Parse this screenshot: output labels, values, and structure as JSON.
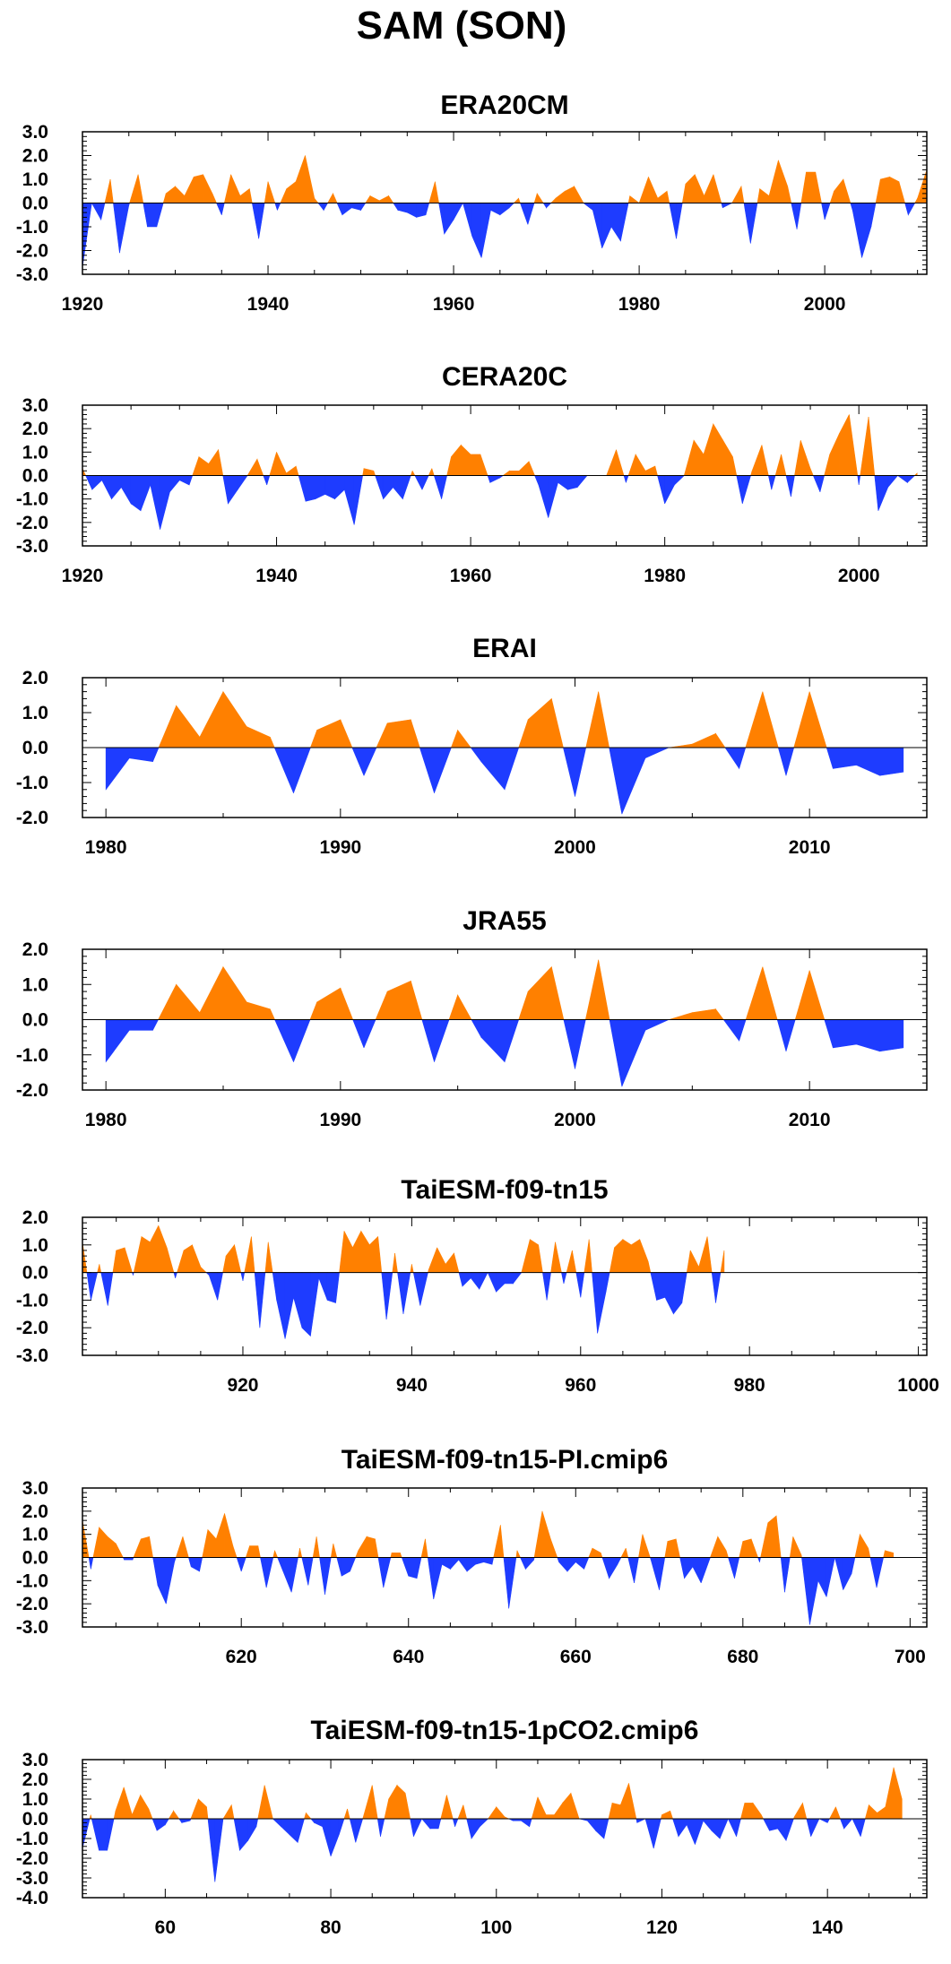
{
  "title": "SAM (SON)",
  "colors": {
    "positive": "#ff8000",
    "negative": "#1e3cff",
    "axis": "#000000",
    "zero_line": "#000000"
  },
  "chart_data": [
    {
      "type": "area",
      "title": "ERA20CM",
      "xlabel": "",
      "ylabel": "",
      "xlim": [
        1920,
        2011
      ],
      "ylim": [
        -3,
        3
      ],
      "yticks": [
        3,
        2,
        1,
        0,
        -1,
        -2,
        -3
      ],
      "ytick_labels": [
        "3.0",
        "2.0",
        "1.0",
        "0.0",
        "-1.0",
        "-2.0",
        "-3.0"
      ],
      "xticks": [
        1920,
        1940,
        1960,
        1980,
        2000
      ],
      "xtick_labels": [
        "1920",
        "1940",
        "1960",
        "1980",
        "2000"
      ],
      "grid": false,
      "x_start": 1920,
      "values": [
        -2.7,
        0.0,
        -0.7,
        1.0,
        -2.1,
        -0.1,
        1.2,
        -1.0,
        -1.0,
        0.4,
        0.7,
        0.3,
        1.1,
        1.2,
        0.4,
        -0.5,
        1.2,
        0.3,
        0.6,
        -1.5,
        0.9,
        -0.3,
        0.6,
        0.9,
        2.0,
        0.2,
        -0.3,
        0.4,
        -0.5,
        -0.2,
        -0.3,
        0.3,
        0.1,
        0.3,
        -0.3,
        -0.4,
        -0.6,
        -0.5,
        0.9,
        -1.3,
        -0.7,
        0.0,
        -1.4,
        -2.3,
        -0.3,
        -0.5,
        -0.2,
        0.2,
        -0.9,
        0.4,
        -0.2,
        0.2,
        0.5,
        0.7,
        0.0,
        -0.3,
        -1.9,
        -1.0,
        -1.6,
        0.3,
        0.0,
        1.1,
        0.2,
        0.5,
        -1.5,
        0.8,
        1.2,
        0.3,
        1.2,
        -0.2,
        0.0,
        0.7,
        -1.7,
        0.6,
        0.3,
        1.8,
        0.7,
        -1.1,
        1.3,
        1.3,
        -0.7,
        0.5,
        1.0,
        -0.3,
        -2.3,
        -1.0,
        1.0,
        1.1,
        0.9,
        -0.5,
        0.2,
        1.4
      ]
    },
    {
      "type": "area",
      "title": "CERA20C",
      "xlabel": "",
      "ylabel": "",
      "xlim": [
        1920,
        2007
      ],
      "ylim": [
        -3,
        3
      ],
      "yticks": [
        3,
        2,
        1,
        0,
        -1,
        -2,
        -3
      ],
      "ytick_labels": [
        "3.0",
        "2.0",
        "1.0",
        "0.0",
        "-1.0",
        "-2.0",
        "-3.0"
      ],
      "xticks": [
        1920,
        1940,
        1960,
        1980,
        2000
      ],
      "xtick_labels": [
        "1920",
        "1940",
        "1960",
        "1980",
        "2000"
      ],
      "grid": false,
      "x_start": 1920,
      "values": [
        0.3,
        -0.6,
        -0.2,
        -1.0,
        -0.5,
        -1.2,
        -1.5,
        -0.4,
        -2.3,
        -0.7,
        -0.2,
        -0.4,
        0.8,
        0.5,
        1.1,
        -1.2,
        -0.6,
        0.0,
        0.7,
        -0.4,
        1.0,
        0.1,
        0.4,
        -1.1,
        -1.0,
        -0.8,
        -1.0,
        -0.6,
        -2.1,
        0.3,
        0.2,
        -1.0,
        -0.5,
        -1.0,
        0.2,
        -0.6,
        0.3,
        -1.0,
        0.8,
        1.3,
        0.9,
        0.9,
        -0.3,
        -0.1,
        0.2,
        0.2,
        0.6,
        -0.4,
        -1.8,
        -0.3,
        -0.6,
        -0.5,
        0.0,
        0.0,
        0.0,
        1.1,
        -0.3,
        0.9,
        0.2,
        0.4,
        -1.2,
        -0.4,
        0.0,
        1.5,
        0.9,
        2.2,
        1.5,
        0.8,
        -1.2,
        0.2,
        1.3,
        -0.6,
        0.9,
        -0.9,
        1.5,
        0.3,
        -0.7,
        0.9,
        1.8,
        2.6,
        -0.4,
        2.5,
        -1.5,
        -0.5,
        0.0,
        -0.3,
        0.1
      ]
    },
    {
      "type": "area",
      "title": "ERAI",
      "xlabel": "",
      "ylabel": "",
      "xlim": [
        1979,
        2015
      ],
      "ylim": [
        -2,
        2
      ],
      "yticks": [
        2,
        1,
        0,
        -1,
        -2
      ],
      "ytick_labels": [
        "2.0",
        "1.0",
        "0.0",
        "-1.0",
        "-2.0"
      ],
      "xticks": [
        1980,
        1990,
        2000,
        2010
      ],
      "xtick_labels": [
        "1980",
        "1990",
        "2000",
        "2010"
      ],
      "grid": false,
      "x_start": 1980,
      "values": [
        -1.2,
        -0.3,
        -0.4,
        1.2,
        0.3,
        1.6,
        0.6,
        0.3,
        -1.3,
        0.5,
        0.8,
        -0.8,
        0.7,
        0.8,
        -1.3,
        0.5,
        -0.4,
        -1.2,
        0.8,
        1.4,
        -1.4,
        1.6,
        -1.9,
        -0.3,
        0.0,
        0.1,
        0.4,
        -0.6,
        1.6,
        -0.8,
        1.6,
        -0.6,
        -0.5,
        -0.8,
        -0.7
      ]
    },
    {
      "type": "area",
      "title": "JRA55",
      "xlabel": "",
      "ylabel": "",
      "xlim": [
        1979,
        2015
      ],
      "ylim": [
        -2,
        2
      ],
      "yticks": [
        2,
        1,
        0,
        -1,
        -2
      ],
      "ytick_labels": [
        "2.0",
        "1.0",
        "0.0",
        "-1.0",
        "-2.0"
      ],
      "xticks": [
        1980,
        1990,
        2000,
        2010
      ],
      "xtick_labels": [
        "1980",
        "1990",
        "2000",
        "2010"
      ],
      "grid": false,
      "x_start": 1980,
      "values": [
        -1.2,
        -0.3,
        -0.3,
        1.0,
        0.2,
        1.5,
        0.5,
        0.3,
        -1.2,
        0.5,
        0.9,
        -0.8,
        0.8,
        1.1,
        -1.2,
        0.7,
        -0.5,
        -1.2,
        0.8,
        1.5,
        -1.4,
        1.7,
        -1.9,
        -0.3,
        0.0,
        0.2,
        0.3,
        -0.6,
        1.5,
        -0.9,
        1.4,
        -0.8,
        -0.7,
        -0.9,
        -0.8
      ]
    },
    {
      "type": "area",
      "title": "TaiESM-f09-tn15",
      "xlabel": "",
      "ylabel": "",
      "xlim": [
        901,
        1001
      ],
      "ylim": [
        -3,
        2
      ],
      "yticks": [
        2,
        1,
        0,
        -1,
        -2,
        -3
      ],
      "ytick_labels": [
        "2.0",
        "1.0",
        "0.0",
        "-1.0",
        "-2.0",
        "-3.0"
      ],
      "xticks": [
        920,
        940,
        960,
        980,
        1000
      ],
      "xtick_labels": [
        "920",
        "940",
        "960",
        "980",
        "1000"
      ],
      "grid": false,
      "x_start": 901,
      "values": [
        1.1,
        -1.0,
        0.3,
        -1.2,
        0.8,
        0.9,
        -0.1,
        1.3,
        1.1,
        1.7,
        0.9,
        -0.2,
        0.8,
        1.0,
        0.2,
        -0.1,
        -1.0,
        0.6,
        1.0,
        -0.3,
        1.3,
        -2.0,
        1.1,
        -1.0,
        -2.4,
        -0.9,
        -2.0,
        -2.3,
        -0.2,
        -1.0,
        -1.1,
        1.5,
        0.9,
        1.5,
        1.0,
        1.3,
        -1.7,
        0.7,
        -1.5,
        0.3,
        -1.2,
        0.1,
        0.9,
        0.3,
        0.7,
        -0.5,
        -0.2,
        -0.6,
        0.0,
        -0.7,
        -0.4,
        -0.4,
        0.0,
        1.2,
        1.0,
        -1.0,
        1.1,
        -0.4,
        0.8,
        -0.9,
        1.2,
        -2.2,
        -0.7,
        0.9,
        1.2,
        1.0,
        1.2,
        0.4,
        -1.0,
        -0.9,
        -1.5,
        -1.1,
        0.8,
        0.2,
        1.3,
        -1.1,
        0.8
      ]
    },
    {
      "type": "area",
      "title": "TaiESM-f09-tn15-PI.cmip6",
      "xlabel": "",
      "ylabel": "",
      "xlim": [
        601,
        702
      ],
      "ylim": [
        -3,
        3
      ],
      "yticks": [
        3,
        2,
        1,
        0,
        -1,
        -2,
        -3
      ],
      "ytick_labels": [
        "3.0",
        "2.0",
        "1.0",
        "0.0",
        "-1.0",
        "-2.0",
        "-3.0"
      ],
      "xticks": [
        620,
        640,
        660,
        680,
        700
      ],
      "xtick_labels": [
        "620",
        "640",
        "660",
        "680",
        "700"
      ],
      "grid": false,
      "x_start": 601,
      "values": [
        1.6,
        -0.5,
        1.3,
        0.9,
        0.6,
        -0.1,
        -0.1,
        0.8,
        0.9,
        -1.2,
        -2.0,
        -0.2,
        0.9,
        -0.4,
        -0.6,
        1.2,
        0.8,
        1.9,
        0.5,
        -0.6,
        0.5,
        0.5,
        -1.3,
        0.3,
        -0.6,
        -1.5,
        0.4,
        -1.2,
        0.9,
        -1.6,
        0.6,
        -0.8,
        -0.6,
        0.3,
        0.9,
        0.8,
        -1.3,
        0.2,
        0.2,
        -0.8,
        -0.9,
        0.8,
        -1.8,
        -0.3,
        -0.5,
        -0.1,
        -0.6,
        -0.3,
        -0.2,
        -0.3,
        1.4,
        -2.2,
        0.3,
        -0.5,
        -0.1,
        2.0,
        0.8,
        -0.2,
        -0.6,
        -0.2,
        -0.5,
        0.4,
        0.2,
        -0.9,
        -0.3,
        0.4,
        -1.1,
        1.0,
        -0.1,
        -1.4,
        0.7,
        0.8,
        -0.9,
        -0.4,
        -1.1,
        -0.1,
        0.9,
        0.3,
        -0.9,
        0.7,
        0.8,
        -0.2,
        1.5,
        1.8,
        -1.5,
        0.9,
        0.1,
        -2.9,
        -1.0,
        -1.7,
        0.0,
        -1.4,
        -0.7,
        1.0,
        0.4,
        -1.3,
        0.3,
        0.2
      ]
    },
    {
      "type": "area",
      "title": "TaiESM-f09-tn15-1pCO2.cmip6",
      "xlabel": "",
      "ylabel": "",
      "xlim": [
        50,
        152
      ],
      "ylim": [
        -4,
        3
      ],
      "yticks": [
        3,
        2,
        1,
        0,
        -1,
        -2,
        -3,
        -4
      ],
      "ytick_labels": [
        "3.0",
        "2.0",
        "1.0",
        "0.0",
        "-1.0",
        "-2.0",
        "-3.0",
        "-4.0"
      ],
      "xticks": [
        60,
        80,
        100,
        120,
        140
      ],
      "xtick_labels": [
        "60",
        "80",
        "100",
        "120",
        "140"
      ],
      "grid": false,
      "x_start": 50,
      "values": [
        -1.5,
        0.2,
        -1.6,
        -1.6,
        0.4,
        1.6,
        0.2,
        1.2,
        0.5,
        -0.6,
        -0.3,
        0.4,
        -0.2,
        -0.1,
        1.0,
        0.6,
        -3.2,
        0.0,
        0.7,
        -1.6,
        -1.1,
        -0.4,
        1.7,
        0.0,
        -0.4,
        -0.8,
        -1.2,
        0.3,
        -0.2,
        -0.4,
        -1.9,
        -0.8,
        0.5,
        -1.2,
        0.2,
        1.7,
        -0.9,
        1.0,
        1.7,
        1.3,
        -0.9,
        0.0,
        -0.5,
        -0.5,
        1.2,
        -0.4,
        0.7,
        -1.0,
        -0.4,
        0.0,
        0.6,
        0.1,
        -0.1,
        -0.1,
        -0.4,
        1.1,
        0.2,
        0.2,
        0.8,
        1.3,
        0.0,
        -0.1,
        -0.6,
        -1.0,
        0.8,
        0.7,
        1.8,
        -0.2,
        0.0,
        -1.5,
        0.2,
        0.4,
        -0.9,
        -0.3,
        -1.3,
        -0.1,
        -0.6,
        -1.0,
        0.0,
        -0.9,
        0.8,
        0.8,
        0.2,
        -0.6,
        -0.5,
        -1.1,
        0.1,
        0.8,
        -0.9,
        0.0,
        -0.2,
        0.6,
        -0.5,
        0.0,
        -0.9,
        0.7,
        0.3,
        0.6,
        2.6,
        1.0
      ]
    }
  ]
}
